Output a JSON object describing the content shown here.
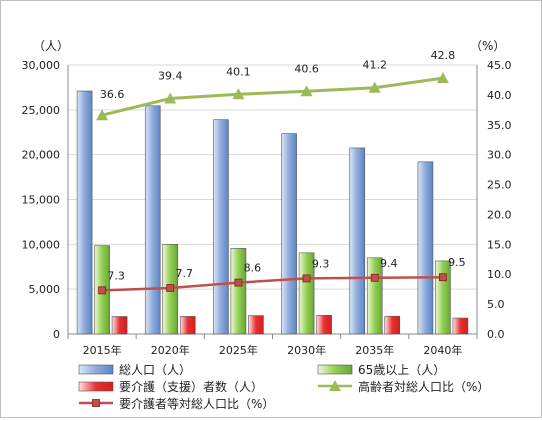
{
  "chart_data": {
    "type": "bar",
    "categories": [
      "2015年",
      "2020年",
      "2025年",
      "2030年",
      "2035年",
      "2040年"
    ],
    "left_axis": {
      "unit_label": "（人）",
      "ylim": [
        0,
        30000
      ],
      "ticks": [
        "0",
        "5,000",
        "10,000",
        "15,000",
        "20,000",
        "25,000",
        "30,000"
      ]
    },
    "right_axis": {
      "unit_label": "（%）",
      "ylim": [
        0,
        45
      ],
      "ticks": [
        "0.0",
        "5.0",
        "10.0",
        "15.0",
        "20.0",
        "25.0",
        "30.0",
        "35.0",
        "40.0",
        "45.0"
      ]
    },
    "bar_series": [
      {
        "name": "総人口（人）",
        "values": [
          27100,
          25450,
          23900,
          22350,
          20750,
          19200
        ],
        "color": "#8eaadb"
      },
      {
        "name": "65歳以上（人）",
        "values": [
          9850,
          10000,
          9550,
          9050,
          8500,
          8150
        ],
        "color": "#92d050"
      },
      {
        "name": "要介護（支援）者数（人）",
        "values": [
          1950,
          1960,
          2050,
          2080,
          1980,
          1780
        ],
        "color": "#e83030"
      }
    ],
    "line_series": [
      {
        "name": "高齢者対総人口比（%）",
        "values": [
          36.6,
          39.4,
          40.1,
          40.6,
          41.2,
          42.8
        ],
        "labels": [
          "36.6",
          "39.4",
          "40.1",
          "40.6",
          "41.2",
          "42.8"
        ],
        "color": "#9bbb59",
        "marker": "triangle"
      },
      {
        "name": "要介護者等対総人口比（%）",
        "values": [
          7.3,
          7.7,
          8.6,
          9.3,
          9.4,
          9.5
        ],
        "labels": [
          "7.3",
          "7.7",
          "8.6",
          "9.3",
          "9.4",
          "9.5"
        ],
        "color": "#c0504d",
        "marker": "square"
      }
    ],
    "grid": true
  }
}
